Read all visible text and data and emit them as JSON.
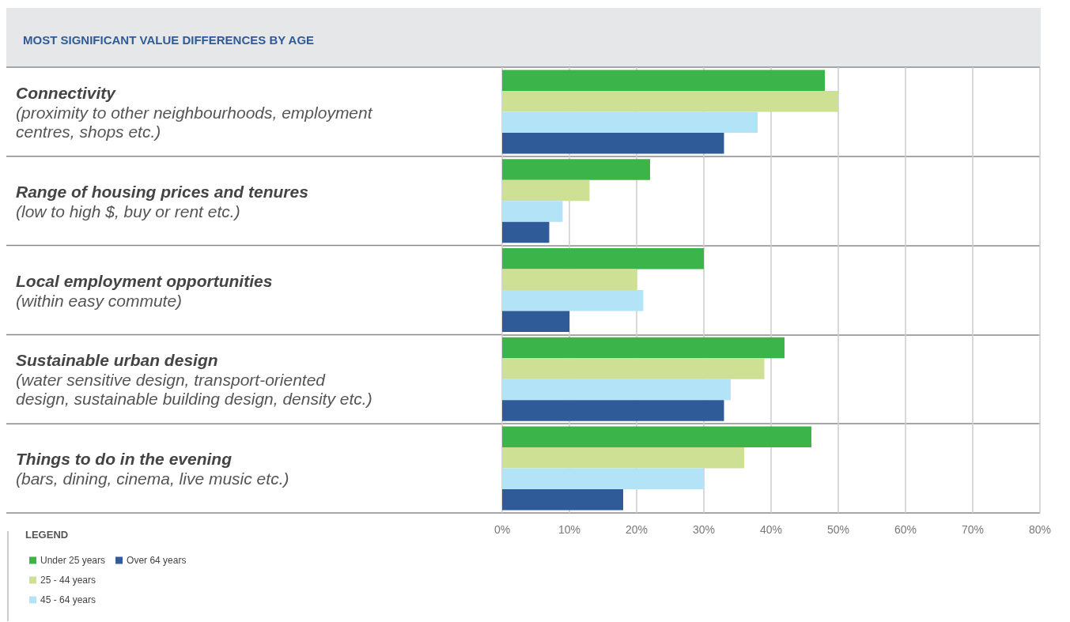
{
  "chart_data": {
    "type": "bar",
    "orientation": "horizontal",
    "title": "MOST SIGNIFICANT VALUE DIFFERENCES BY AGE",
    "categories": [
      "Connectivity\n(proximity to other neighbourhoods, employment centres, shops etc.)",
      "Range of housing prices and tenures\n(low to high $, buy or rent etc.)",
      "Local employment opportunities\n(within easy commute)",
      "Sustainable urban design\n(water sensitive design, transport-oriented design, sustainable building design, density etc.)",
      "Things to do in the evening\n(bars, dining, cinema, live music etc.)"
    ],
    "series": [
      {
        "name": "Under 25 years",
        "color": "#3bb54a",
        "values": [
          48,
          22,
          30,
          42,
          46
        ]
      },
      {
        "name": "25 - 44 years",
        "color": "#cde094",
        "values": [
          50,
          13,
          20,
          39,
          36
        ]
      },
      {
        "name": "45 - 64 years",
        "color": "#b3e3f7",
        "values": [
          38,
          9,
          21,
          34,
          30
        ]
      },
      {
        "name": "Over 64 years",
        "color": "#2f5b98",
        "values": [
          33,
          7,
          10,
          33,
          18
        ]
      }
    ],
    "xlim": [
      0,
      80
    ],
    "xticks": [
      {
        "value": 0,
        "label": "0%"
      },
      {
        "value": 10,
        "label": "10%"
      },
      {
        "value": 20,
        "label": "20%"
      },
      {
        "value": 30,
        "label": "30%"
      },
      {
        "value": 40,
        "label": "40%"
      },
      {
        "value": 50,
        "label": "50%"
      },
      {
        "value": 60,
        "label": "60%"
      },
      {
        "value": 70,
        "label": "70%"
      },
      {
        "value": 80,
        "label": "80%"
      }
    ],
    "grid": "x",
    "legend": "bottom left",
    "legend_title": "LEGEND"
  }
}
